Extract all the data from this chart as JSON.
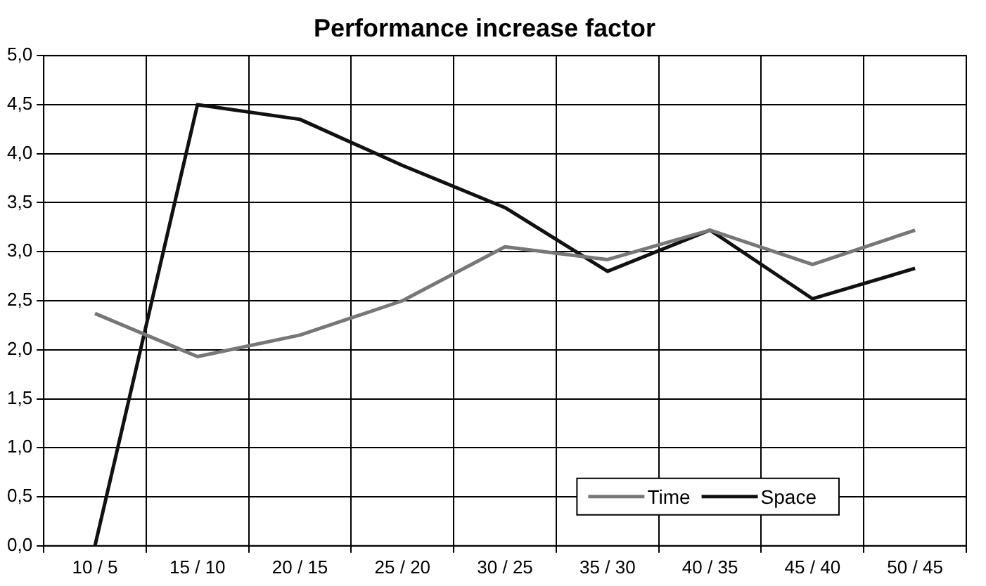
{
  "chart_data": {
    "type": "line",
    "title": "Performance increase factor",
    "categories": [
      "10 / 5",
      "15 / 10",
      "20 / 15",
      "25 / 20",
      "30 / 25",
      "35 / 30",
      "40 / 35",
      "45 / 40",
      "50 / 45"
    ],
    "series": [
      {
        "name": "Time",
        "color": "#777777",
        "values": [
          2.37,
          1.93,
          2.15,
          2.5,
          3.05,
          2.92,
          3.22,
          2.87,
          3.22
        ]
      },
      {
        "name": "Space",
        "color": "#111111",
        "values": [
          0.0,
          4.5,
          4.35,
          3.88,
          3.45,
          2.8,
          3.22,
          2.52,
          2.83
        ]
      }
    ],
    "ylim": [
      0,
      5
    ],
    "yticks": [
      {
        "value": 0,
        "label": "0,0"
      },
      {
        "value": 0.5,
        "label": "0,5"
      },
      {
        "value": 1,
        "label": "1,0"
      },
      {
        "value": 1.5,
        "label": "1,5"
      },
      {
        "value": 2,
        "label": "2,0"
      },
      {
        "value": 2.5,
        "label": "2,5"
      },
      {
        "value": 3,
        "label": "3,0"
      },
      {
        "value": 3.5,
        "label": "3,5"
      },
      {
        "value": 4,
        "label": "4,0"
      },
      {
        "value": 4.5,
        "label": "4,5"
      },
      {
        "value": 5,
        "label": "5,0"
      }
    ],
    "grid": true,
    "legend": "bottom right",
    "marker": "none",
    "line_style": "solid"
  }
}
